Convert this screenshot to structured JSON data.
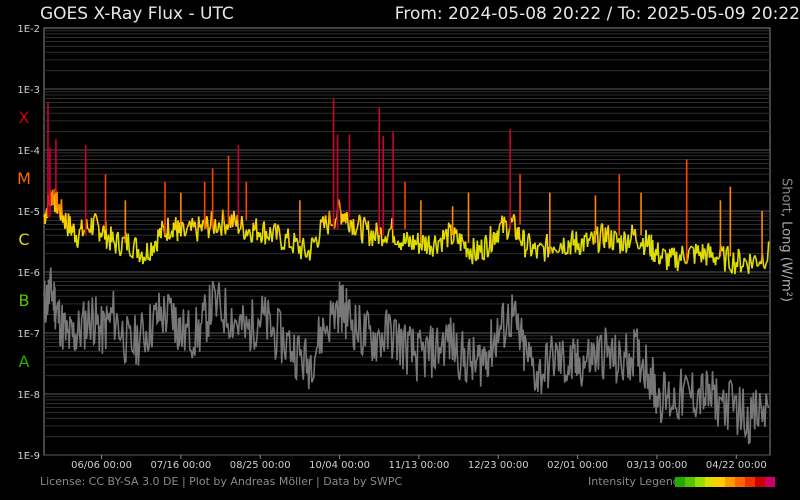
{
  "header": {
    "title": "GOES X-Ray Flux - UTC",
    "range": "From: 2024-05-08 20:22  /  To: 2025-05-09 20:22"
  },
  "footer": {
    "license": "License: CC BY-SA 3.0 DE | Plot by Andreas Möller | Data by SWPC",
    "legend_label": "Intensity Legend",
    "legend_colors": [
      "#22aa00",
      "#55c400",
      "#99dd00",
      "#dddd00",
      "#ffcc00",
      "#ff9900",
      "#ff6600",
      "#ee3300",
      "#cc0000",
      "#cc0066"
    ]
  },
  "chart_data": {
    "type": "line",
    "title": "GOES X-Ray Flux - UTC",
    "xlabel": "",
    "ylabel_short": "Short",
    "ylabel_sep": ", ",
    "ylabel_long": "Long (W/m²)",
    "yscale": "log",
    "ylim": [
      1e-09,
      0.01
    ],
    "y_ticks": [
      "1E-2",
      "1E-3",
      "1E-4",
      "1E-5",
      "1E-6",
      "1E-7",
      "1E-8",
      "1E-9"
    ],
    "xlim": [
      "2024-05-08",
      "2025-05-09"
    ],
    "x_ticks": [
      {
        "label": "06/06 00:00",
        "date": "2024-06-06"
      },
      {
        "label": "07/16 00:00",
        "date": "2024-07-16"
      },
      {
        "label": "08/25 00:00",
        "date": "2024-08-25"
      },
      {
        "label": "10/04 00:00",
        "date": "2024-10-04"
      },
      {
        "label": "11/13 00:00",
        "date": "2024-11-13"
      },
      {
        "label": "12/23 00:00",
        "date": "2024-12-23"
      },
      {
        "label": "02/01 00:00",
        "date": "2025-02-01"
      },
      {
        "label": "03/13 00:00",
        "date": "2025-03-13"
      },
      {
        "label": "04/22 00:00",
        "date": "2025-04-22"
      }
    ],
    "flare_classes": [
      {
        "label": "X",
        "color": "#cc0000"
      },
      {
        "label": "M",
        "color": "#ff6600"
      },
      {
        "label": "C",
        "color": "#dddd00"
      },
      {
        "label": "B",
        "color": "#55c400"
      },
      {
        "label": "A",
        "color": "#22aa00"
      }
    ],
    "grid": true,
    "series": [
      {
        "name": "Long",
        "color": "#dddd00",
        "values": [
          [
            "2024-05-08",
            8e-06
          ],
          [
            "2024-05-12",
            2e-05
          ],
          [
            "2024-05-15",
            1.2e-05
          ],
          [
            "2024-05-20",
            6e-06
          ],
          [
            "2024-05-25",
            4e-06
          ],
          [
            "2024-06-01",
            6e-06
          ],
          [
            "2024-06-06",
            5e-06
          ],
          [
            "2024-06-12",
            3e-06
          ],
          [
            "2024-06-20",
            3e-06
          ],
          [
            "2024-06-28",
            2e-06
          ],
          [
            "2024-07-05",
            4e-06
          ],
          [
            "2024-07-12",
            6e-06
          ],
          [
            "2024-07-16",
            4e-06
          ],
          [
            "2024-07-25",
            5e-06
          ],
          [
            "2024-08-01",
            6e-06
          ],
          [
            "2024-08-10",
            7e-06
          ],
          [
            "2024-08-18",
            5e-06
          ],
          [
            "2024-08-25",
            5e-06
          ],
          [
            "2024-09-01",
            4e-06
          ],
          [
            "2024-09-10",
            3e-06
          ],
          [
            "2024-09-18",
            2e-06
          ],
          [
            "2024-09-25",
            5e-06
          ],
          [
            "2024-10-04",
            1e-05
          ],
          [
            "2024-10-08",
            8e-06
          ],
          [
            "2024-10-15",
            5e-06
          ],
          [
            "2024-10-22",
            4e-06
          ],
          [
            "2024-10-30",
            5e-06
          ],
          [
            "2024-11-06",
            3e-06
          ],
          [
            "2024-11-13",
            3e-06
          ],
          [
            "2024-11-20",
            3e-06
          ],
          [
            "2024-11-28",
            4e-06
          ],
          [
            "2024-12-05",
            3e-06
          ],
          [
            "2024-12-12",
            2e-06
          ],
          [
            "2024-12-18",
            3e-06
          ],
          [
            "2024-12-23",
            5e-06
          ],
          [
            "2024-12-30",
            6e-06
          ],
          [
            "2025-01-05",
            3e-06
          ],
          [
            "2025-01-12",
            2e-06
          ],
          [
            "2025-01-20",
            3e-06
          ],
          [
            "2025-01-27",
            3e-06
          ],
          [
            "2025-02-01",
            3e-06
          ],
          [
            "2025-02-08",
            3e-06
          ],
          [
            "2025-02-15",
            4e-06
          ],
          [
            "2025-02-22",
            3e-06
          ],
          [
            "2025-03-01",
            4e-06
          ],
          [
            "2025-03-08",
            3e-06
          ],
          [
            "2025-03-13",
            2e-06
          ],
          [
            "2025-03-20",
            1.5e-06
          ],
          [
            "2025-03-28",
            2e-06
          ],
          [
            "2025-04-05",
            2e-06
          ],
          [
            "2025-04-12",
            1.8e-06
          ],
          [
            "2025-04-22",
            1.5e-06
          ],
          [
            "2025-04-30",
            1.5e-06
          ],
          [
            "2025-05-09",
            2e-06
          ]
        ]
      },
      {
        "name": "Short",
        "color": "#777777",
        "values": [
          [
            "2024-05-08",
            3e-07
          ],
          [
            "2024-05-12",
            5e-07
          ],
          [
            "2024-05-15",
            2e-07
          ],
          [
            "2024-05-20",
            8e-08
          ],
          [
            "2024-05-25",
            1e-07
          ],
          [
            "2024-06-01",
            2e-07
          ],
          [
            "2024-06-06",
            1e-07
          ],
          [
            "2024-06-12",
            2e-07
          ],
          [
            "2024-06-20",
            6e-08
          ],
          [
            "2024-06-28",
            1e-07
          ],
          [
            "2024-07-05",
            2e-07
          ],
          [
            "2024-07-12",
            2e-07
          ],
          [
            "2024-07-16",
            1e-07
          ],
          [
            "2024-07-25",
            1e-07
          ],
          [
            "2024-08-01",
            3e-07
          ],
          [
            "2024-08-10",
            2e-07
          ],
          [
            "2024-08-18",
            1e-07
          ],
          [
            "2024-08-25",
            2e-07
          ],
          [
            "2024-09-01",
            1e-07
          ],
          [
            "2024-09-10",
            6e-08
          ],
          [
            "2024-09-18",
            3e-08
          ],
          [
            "2024-09-25",
            1e-07
          ],
          [
            "2024-10-04",
            3e-07
          ],
          [
            "2024-10-08",
            2e-07
          ],
          [
            "2024-10-15",
            1e-07
          ],
          [
            "2024-10-22",
            8e-08
          ],
          [
            "2024-10-30",
            1e-07
          ],
          [
            "2024-11-06",
            6e-08
          ],
          [
            "2024-11-13",
            4e-08
          ],
          [
            "2024-11-20",
            5e-08
          ],
          [
            "2024-11-28",
            8e-08
          ],
          [
            "2024-12-05",
            4e-08
          ],
          [
            "2024-12-12",
            3e-08
          ],
          [
            "2024-12-18",
            5e-08
          ],
          [
            "2024-12-23",
            1e-07
          ],
          [
            "2024-12-30",
            2e-07
          ],
          [
            "2025-01-05",
            5e-08
          ],
          [
            "2025-01-12",
            2e-08
          ],
          [
            "2025-01-20",
            4e-08
          ],
          [
            "2025-01-27",
            3e-08
          ],
          [
            "2025-02-01",
            3e-08
          ],
          [
            "2025-02-08",
            4e-08
          ],
          [
            "2025-02-15",
            5e-08
          ],
          [
            "2025-02-22",
            3e-08
          ],
          [
            "2025-03-01",
            5e-08
          ],
          [
            "2025-03-08",
            3e-08
          ],
          [
            "2025-03-13",
            1e-08
          ],
          [
            "2025-03-20",
            8e-09
          ],
          [
            "2025-03-28",
            1e-08
          ],
          [
            "2025-04-05",
            1e-08
          ],
          [
            "2025-04-12",
            8e-09
          ],
          [
            "2025-04-22",
            6e-09
          ],
          [
            "2025-04-30",
            4e-09
          ],
          [
            "2025-05-09",
            6e-09
          ]
        ]
      }
    ],
    "peaks": [
      [
        "2024-05-10",
        0.0006
      ],
      [
        "2024-05-11",
        0.00011
      ],
      [
        "2024-05-14",
        0.00015
      ],
      [
        "2024-05-29",
        0.00012
      ],
      [
        "2024-06-08",
        4e-05
      ],
      [
        "2024-06-18",
        1.5e-05
      ],
      [
        "2024-07-08",
        3e-05
      ],
      [
        "2024-07-16",
        2e-05
      ],
      [
        "2024-07-28",
        3e-05
      ],
      [
        "2024-08-01",
        5e-05
      ],
      [
        "2024-08-09",
        8e-05
      ],
      [
        "2024-08-14",
        0.00012
      ],
      [
        "2024-08-18",
        3e-05
      ],
      [
        "2024-09-14",
        1.5e-05
      ],
      [
        "2024-10-01",
        0.0007
      ],
      [
        "2024-10-03",
        0.00018
      ],
      [
        "2024-10-09",
        0.00018
      ],
      [
        "2024-10-24",
        0.0005
      ],
      [
        "2024-10-26",
        0.00017
      ],
      [
        "2024-10-31",
        0.0002
      ],
      [
        "2024-11-06",
        3e-05
      ],
      [
        "2024-11-14",
        1.5e-05
      ],
      [
        "2024-11-30",
        1.2e-05
      ],
      [
        "2024-12-08",
        2e-05
      ],
      [
        "2024-12-29",
        0.00022
      ],
      [
        "2025-01-03",
        4e-05
      ],
      [
        "2025-01-18",
        2e-05
      ],
      [
        "2025-02-10",
        1.8e-05
      ],
      [
        "2025-02-22",
        4e-05
      ],
      [
        "2025-03-05",
        2e-05
      ],
      [
        "2025-03-28",
        7e-05
      ],
      [
        "2025-04-14",
        1.5e-05
      ],
      [
        "2025-04-19",
        2.5e-05
      ],
      [
        "2025-05-05",
        1e-05
      ]
    ]
  }
}
